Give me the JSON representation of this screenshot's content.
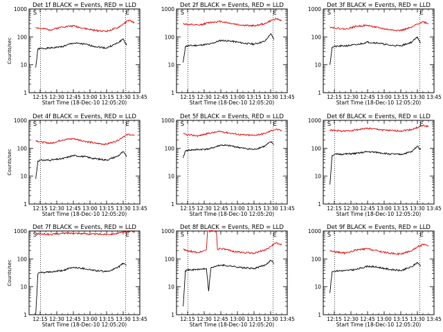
{
  "chart_data": [
    {
      "type": "line",
      "title": "Det 1f BLACK = Events, RED = LLD",
      "xlabel": "Start Time (18-Dec-10 12:05:20)",
      "ylabel": "Counts/sec",
      "x_ticks": [
        "12:15",
        "12:30",
        "12:45",
        "13:00",
        "13:15",
        "13:30",
        "13:45"
      ],
      "x_range_min": [
        0,
        100
      ],
      "y_log": true,
      "ylim": [
        1,
        1000
      ],
      "y_ticks": [
        "1",
        "10",
        "100",
        "1000"
      ],
      "markers": [
        {
          "label": "S",
          "at_min": 3.6
        },
        {
          "label": "E",
          "at_min": 87.1
        }
      ],
      "dotted_lines_min": [
        10.3,
        87.1
      ],
      "series": [
        {
          "name": "BLACK = Events",
          "color": "#000000",
          "x": [
            6,
            8,
            10,
            20,
            30,
            40,
            50,
            60,
            70,
            80,
            85,
            88
          ],
          "values": [
            8,
            37,
            38,
            40,
            45,
            60,
            55,
            45,
            40,
            60,
            85,
            50
          ]
        },
        {
          "name": "RED = LLD",
          "color": "#dd0000",
          "x": [
            6,
            10,
            20,
            30,
            40,
            50,
            60,
            70,
            80,
            85,
            90,
            95
          ],
          "values": [
            220,
            200,
            180,
            230,
            250,
            200,
            170,
            160,
            210,
            290,
            400,
            320
          ]
        }
      ]
    },
    {
      "type": "line",
      "title": "Det 2f BLACK = Events, RED = LLD",
      "xlabel": "Start Time (18-Dec-10 12:05:20)",
      "ylabel": "Counts/sec",
      "x_ticks": [
        "12:15",
        "12:30",
        "12:45",
        "13:00",
        "13:15",
        "13:30",
        "13:45"
      ],
      "x_range_min": [
        0,
        100
      ],
      "y_log": true,
      "ylim": [
        1,
        1000
      ],
      "y_ticks": [
        "1",
        "10",
        "100",
        "1000"
      ],
      "markers": [
        {
          "label": "S",
          "at_min": 3.6
        },
        {
          "label": "E",
          "at_min": 87.1
        }
      ],
      "dotted_lines_min": [
        10.3,
        87.1
      ],
      "series": [
        {
          "name": "BLACK = Events",
          "color": "#000000",
          "x": [
            6,
            8,
            10,
            20,
            30,
            40,
            50,
            60,
            70,
            80,
            85,
            88
          ],
          "values": [
            12,
            45,
            48,
            50,
            55,
            75,
            70,
            60,
            55,
            70,
            130,
            80
          ]
        },
        {
          "name": "RED = LLD",
          "color": "#dd0000",
          "x": [
            6,
            10,
            20,
            30,
            40,
            50,
            60,
            70,
            80,
            85,
            90,
            95
          ],
          "values": [
            300,
            280,
            260,
            330,
            360,
            300,
            260,
            250,
            300,
            380,
            450,
            380
          ]
        }
      ]
    },
    {
      "type": "line",
      "title": "Det 3f BLACK = Events, RED = LLD",
      "xlabel": "Start Time (18-Dec-10 12:05:20)",
      "ylabel": "Counts/sec",
      "x_ticks": [
        "12:15",
        "12:30",
        "12:45",
        "13:00",
        "13:15",
        "13:30",
        "13:45"
      ],
      "x_range_min": [
        0,
        100
      ],
      "y_log": true,
      "ylim": [
        1,
        1000
      ],
      "y_ticks": [
        "1",
        "10",
        "100",
        "1000"
      ],
      "markers": [
        {
          "label": "S",
          "at_min": 3.6
        },
        {
          "label": "E",
          "at_min": 87.1
        }
      ],
      "dotted_lines_min": [
        10.3,
        87.1
      ],
      "series": [
        {
          "name": "BLACK = Events",
          "color": "#000000",
          "x": [
            6,
            8,
            10,
            20,
            30,
            40,
            50,
            60,
            70,
            80,
            85,
            88
          ],
          "values": [
            10,
            42,
            45,
            48,
            52,
            65,
            60,
            50,
            48,
            65,
            100,
            60
          ]
        },
        {
          "name": "RED = LLD",
          "color": "#dd0000",
          "x": [
            6,
            10,
            20,
            30,
            40,
            50,
            60,
            70,
            80,
            85,
            90,
            95
          ],
          "values": [
            230,
            210,
            190,
            240,
            260,
            210,
            180,
            170,
            220,
            290,
            350,
            300
          ]
        }
      ]
    },
    {
      "type": "line",
      "title": "Det 4f BLACK = Events, RED = LLD",
      "xlabel": "Start Time (18-Dec-10 12:05:20)",
      "ylabel": "Counts/sec",
      "x_ticks": [
        "12:15",
        "12:30",
        "12:45",
        "13:00",
        "13:15",
        "13:30",
        "13:45"
      ],
      "x_range_min": [
        0,
        100
      ],
      "y_log": true,
      "ylim": [
        1,
        1000
      ],
      "y_ticks": [
        "1",
        "10",
        "100",
        "1000"
      ],
      "markers": [
        {
          "label": "S",
          "at_min": 3.6
        },
        {
          "label": "E",
          "at_min": 87.1
        }
      ],
      "dotted_lines_min": [
        10.3,
        87.1
      ],
      "series": [
        {
          "name": "BLACK = Events",
          "color": "#000000",
          "x": [
            6,
            8,
            10,
            20,
            30,
            40,
            50,
            60,
            70,
            80,
            85,
            88
          ],
          "values": [
            8,
            35,
            37,
            38,
            42,
            55,
            50,
            42,
            38,
            52,
            75,
            50
          ]
        },
        {
          "name": "RED = LLD",
          "color": "#dd0000",
          "x": [
            6,
            10,
            20,
            30,
            40,
            50,
            60,
            70,
            80,
            85,
            90,
            95
          ],
          "values": [
            190,
            170,
            150,
            200,
            220,
            180,
            150,
            140,
            190,
            260,
            320,
            280
          ]
        }
      ]
    },
    {
      "type": "line",
      "title": "Det 5f BLACK = Events, RED = LLD",
      "xlabel": "Start Time (18-Dec-10 12:05:20)",
      "ylabel": "Counts/sec",
      "x_ticks": [
        "12:15",
        "12:30",
        "12:45",
        "13:00",
        "13:15",
        "13:30",
        "13:45"
      ],
      "x_range_min": [
        0,
        100
      ],
      "y_log": true,
      "ylim": [
        1,
        1000
      ],
      "y_ticks": [
        "1",
        "10",
        "100",
        "1000"
      ],
      "markers": [
        {
          "label": "S",
          "at_min": 3.6
        },
        {
          "label": "E",
          "at_min": 87.1
        }
      ],
      "dotted_lines_min": [
        10.3,
        87.1
      ],
      "series": [
        {
          "name": "BLACK = Events",
          "color": "#000000",
          "x": [
            6,
            8,
            10,
            20,
            30,
            40,
            50,
            60,
            70,
            80,
            85,
            88
          ],
          "values": [
            45,
            80,
            85,
            90,
            95,
            130,
            120,
            100,
            90,
            120,
            170,
            140
          ]
        },
        {
          "name": "RED = LLD",
          "color": "#dd0000",
          "x": [
            6,
            10,
            20,
            30,
            40,
            50,
            60,
            70,
            80,
            85,
            90,
            95
          ],
          "values": [
            330,
            300,
            280,
            350,
            400,
            340,
            300,
            290,
            340,
            420,
            480,
            420
          ]
        }
      ]
    },
    {
      "type": "line",
      "title": "Det 6f BLACK = Events, RED = LLD",
      "xlabel": "Start Time (18-Dec-10 12:05:20)",
      "ylabel": "Counts/sec",
      "x_ticks": [
        "12:15",
        "12:30",
        "12:45",
        "13:00",
        "13:15",
        "13:30",
        "13:45"
      ],
      "x_range_min": [
        0,
        100
      ],
      "y_log": true,
      "ylim": [
        1,
        1000
      ],
      "y_ticks": [
        "1",
        "10",
        "100",
        "1000"
      ],
      "markers": [
        {
          "label": "S",
          "at_min": 3.6
        },
        {
          "label": "E",
          "at_min": 87.1
        }
      ],
      "dotted_lines_min": [
        10.3,
        87.1
      ],
      "series": [
        {
          "name": "BLACK = Events",
          "color": "#000000",
          "x": [
            6,
            8,
            10,
            20,
            30,
            40,
            50,
            60,
            70,
            80,
            85,
            88
          ],
          "values": [
            5,
            55,
            60,
            62,
            65,
            75,
            70,
            62,
            60,
            75,
            120,
            90
          ]
        },
        {
          "name": "RED = LLD",
          "color": "#dd0000",
          "x": [
            6,
            10,
            20,
            30,
            40,
            50,
            60,
            70,
            80,
            85,
            90,
            95
          ],
          "values": [
            450,
            430,
            410,
            460,
            520,
            470,
            430,
            420,
            470,
            550,
            650,
            600
          ]
        }
      ]
    },
    {
      "type": "line",
      "title": "Det 7f BLACK = Events, RED = LLD",
      "xlabel": "Start Time (18-Dec-10 12:05:20)",
      "ylabel": "Counts/sec",
      "x_ticks": [
        "12:15",
        "12:30",
        "12:45",
        "13:00",
        "13:15",
        "13:30",
        "13:45"
      ],
      "x_range_min": [
        0,
        100
      ],
      "y_log": true,
      "ylim": [
        1,
        1000
      ],
      "y_ticks": [
        "1",
        "10",
        "100",
        "1000"
      ],
      "markers": [
        {
          "label": "S",
          "at_min": 3.6
        },
        {
          "label": "E",
          "at_min": 87.1
        }
      ],
      "dotted_lines_min": [
        10.3,
        87.1
      ],
      "series": [
        {
          "name": "BLACK = Events",
          "color": "#000000",
          "x": [
            6,
            8,
            10,
            20,
            30,
            40,
            50,
            60,
            70,
            80,
            85,
            88
          ],
          "values": [
            1,
            30,
            32,
            34,
            38,
            50,
            45,
            38,
            35,
            48,
            70,
            60
          ]
        },
        {
          "name": "RED = LLD",
          "color": "#dd0000",
          "x": [
            6,
            10,
            20,
            30,
            40,
            50,
            60,
            70,
            80,
            85,
            90,
            95
          ],
          "values": [
            800,
            780,
            760,
            820,
            850,
            800,
            770,
            760,
            820,
            900,
            1000,
            950
          ]
        }
      ]
    },
    {
      "type": "line",
      "title": "Det 8f BLACK = Events, RED = LLD",
      "xlabel": "Start Time (18-Dec-10 12:05:20)",
      "ylabel": "Counts/sec",
      "x_ticks": [
        "12:15",
        "12:30",
        "12:45",
        "13:00",
        "13:15",
        "13:30",
        "13:45"
      ],
      "x_range_min": [
        0,
        100
      ],
      "y_log": true,
      "ylim": [
        1,
        1000
      ],
      "y_ticks": [
        "1",
        "10",
        "100",
        "1000"
      ],
      "markers": [
        {
          "label": "S",
          "at_min": 3.6
        },
        {
          "label": "E",
          "at_min": 87.1
        }
      ],
      "dotted_lines_min": [
        10.3,
        87.1
      ],
      "series": [
        {
          "name": "BLACK = Events",
          "color": "#000000",
          "x": [
            6,
            8,
            10,
            20,
            27,
            29,
            31,
            32,
            40,
            50,
            60,
            70,
            80,
            85,
            88
          ],
          "values": [
            2,
            38,
            40,
            42,
            45,
            7,
            45,
            50,
            60,
            55,
            48,
            45,
            60,
            90,
            70
          ]
        },
        {
          "name": "RED = LLD",
          "color": "#dd0000",
          "x": [
            6,
            10,
            20,
            27,
            28,
            36,
            37,
            40,
            50,
            60,
            70,
            80,
            85,
            90,
            95
          ],
          "values": [
            220,
            190,
            170,
            210,
            1000,
            1000,
            220,
            240,
            190,
            170,
            160,
            210,
            280,
            380,
            320
          ]
        }
      ]
    },
    {
      "type": "line",
      "title": "Det 9f BLACK = Events, RED = LLD",
      "xlabel": "Start Time (18-Dec-10 12:05:20)",
      "ylabel": "Counts/sec",
      "x_ticks": [
        "12:15",
        "12:30",
        "12:45",
        "13:00",
        "13:15",
        "13:30",
        "13:45"
      ],
      "x_range_min": [
        0,
        100
      ],
      "y_log": true,
      "ylim": [
        1,
        1000
      ],
      "y_ticks": [
        "1",
        "10",
        "100",
        "1000"
      ],
      "markers": [
        {
          "label": "S",
          "at_min": 3.6
        },
        {
          "label": "E",
          "at_min": 87.1
        }
      ],
      "dotted_lines_min": [
        10.3,
        87.1
      ],
      "series": [
        {
          "name": "BLACK = Events",
          "color": "#000000",
          "x": [
            6,
            8,
            10,
            20,
            30,
            40,
            50,
            60,
            70,
            80,
            85,
            88
          ],
          "values": [
            6,
            35,
            37,
            38,
            42,
            55,
            50,
            42,
            38,
            52,
            75,
            55
          ]
        },
        {
          "name": "RED = LLD",
          "color": "#dd0000",
          "x": [
            6,
            10,
            20,
            30,
            40,
            50,
            60,
            70,
            80,
            85,
            90,
            95
          ],
          "values": [
            200,
            180,
            160,
            210,
            230,
            190,
            160,
            150,
            200,
            270,
            330,
            290
          ]
        }
      ]
    }
  ]
}
